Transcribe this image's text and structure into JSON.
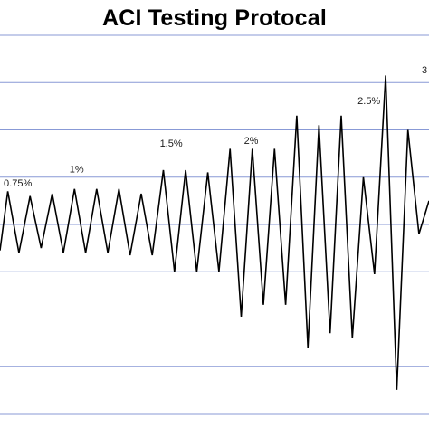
{
  "chart_data": {
    "type": "line",
    "title": "ACI Testing Protocal",
    "xlabel": "",
    "ylabel": "",
    "grid": true,
    "legend": "none",
    "colors": {
      "line": "#000000",
      "grid": "#8899d6",
      "background": "#ffffff"
    },
    "ylim": [
      -4,
      4
    ],
    "xlim": [
      0,
      19.3
    ],
    "x": [
      0,
      0.35,
      0.85,
      1.35,
      1.85,
      2.35,
      2.85,
      3.35,
      3.85,
      4.35,
      4.85,
      5.35,
      5.85,
      6.35,
      6.85,
      7.35,
      7.85,
      8.35,
      8.85,
      9.35,
      9.85,
      10.35,
      10.85,
      11.35,
      11.85,
      12.35,
      12.85,
      13.35,
      13.85,
      14.35,
      14.85,
      15.35,
      15.85,
      16.35,
      16.85,
      17.35,
      17.85,
      18.35,
      18.85,
      19.3
    ],
    "y": [
      -0.55,
      0.7,
      -0.6,
      0.6,
      -0.5,
      0.65,
      -0.6,
      0.75,
      -0.6,
      0.75,
      -0.6,
      0.75,
      -0.65,
      0.65,
      -0.65,
      1.15,
      -1.0,
      1.15,
      -1.0,
      1.1,
      -1.0,
      1.6,
      -1.95,
      1.6,
      -1.7,
      1.6,
      -1.7,
      2.3,
      -2.6,
      2.1,
      -2.3,
      2.3,
      -2.4,
      1.0,
      -1.05,
      3.15,
      -3.5,
      2.0,
      -0.2,
      0.5
    ],
    "annotations": [
      {
        "text": "0.75%",
        "x": 0.8,
        "y": 0.8
      },
      {
        "text": "1%",
        "x": 3.45,
        "y": 1.1
      },
      {
        "text": "1.5%",
        "x": 7.7,
        "y": 1.65
      },
      {
        "text": "2%",
        "x": 11.3,
        "y": 1.7
      },
      {
        "text": "2.5%",
        "x": 16.6,
        "y": 2.55
      },
      {
        "text": "3",
        "x": 19.1,
        "y": 3.2
      }
    ]
  }
}
